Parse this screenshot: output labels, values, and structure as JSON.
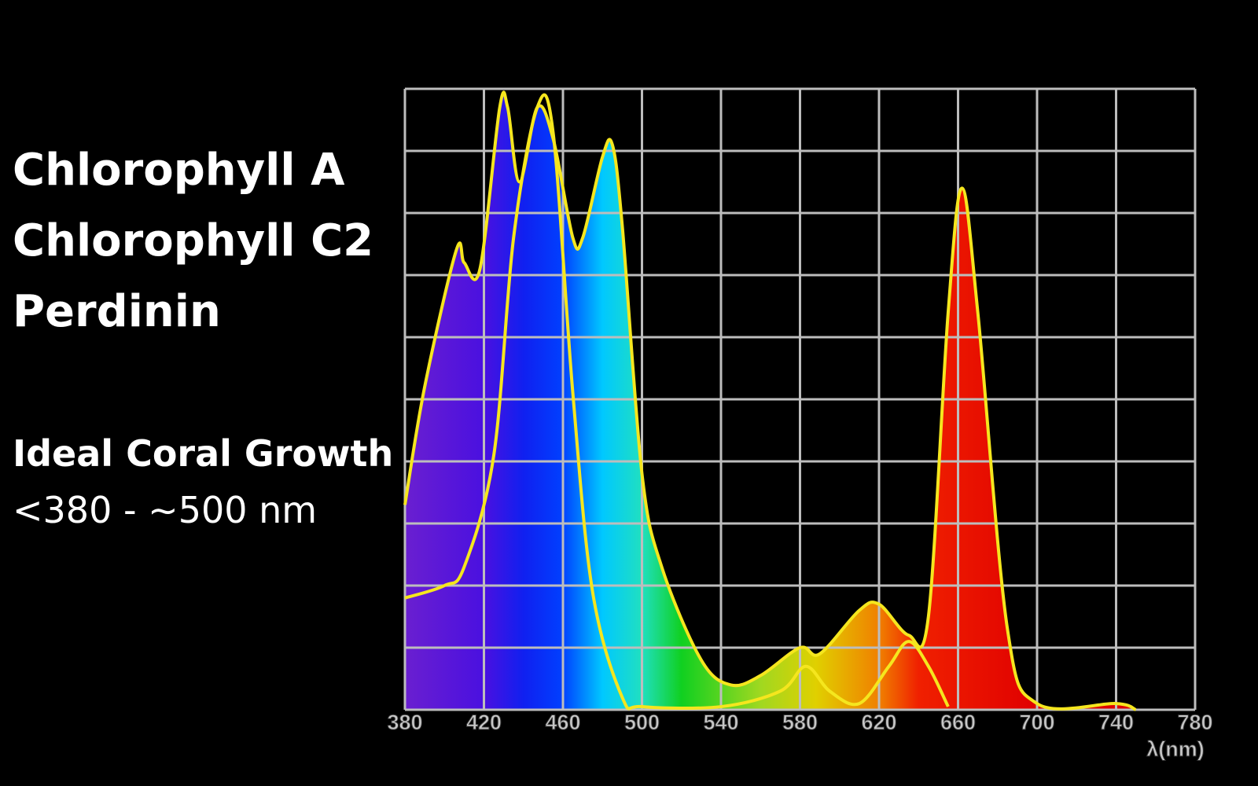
{
  "pigments": [
    "Chlorophyll A",
    "Chlorophyll C2",
    "Perdinin"
  ],
  "note": {
    "title": "Ideal Coral Growth",
    "text": "<380 - ~500 nm"
  },
  "chart_data": {
    "type": "line",
    "xlabel": "λ(nm)",
    "xlim": [
      380,
      780
    ],
    "xticks": [
      380,
      420,
      460,
      500,
      540,
      580,
      620,
      660,
      700,
      740,
      780
    ],
    "ylim": [
      0,
      10
    ],
    "yticks": [
      0,
      1,
      2,
      3,
      4,
      5,
      6,
      7,
      8,
      9,
      10
    ],
    "show_ytick_labels": false,
    "grid": true,
    "series": [
      {
        "color": "#f5e61e",
        "fill": true,
        "x": [
          380,
          390,
          406,
          410,
          418,
          428,
          432,
          438,
          447,
          455,
          465,
          470,
          480,
          485,
          490,
          500,
          510,
          530,
          545,
          560,
          580,
          590,
          610,
          620,
          635,
          645,
          655,
          662,
          670,
          685,
          700,
          740,
          750
        ],
        "values": [
          3.3,
          5.2,
          7.4,
          7.2,
          7.1,
          9.7,
          9.7,
          8.5,
          9.7,
          9.2,
          7.6,
          7.6,
          8.9,
          9.1,
          7.8,
          3.8,
          2.3,
          0.8,
          0.4,
          0.55,
          1.0,
          0.9,
          1.6,
          1.7,
          1.2,
          1.5,
          6.4,
          8.4,
          6.4,
          1.3,
          0.1,
          0.1,
          0
        ]
      },
      {
        "color": "#f5e61e",
        "fill": false,
        "x": [
          380,
          400,
          410,
          425,
          435,
          447,
          455,
          465,
          475,
          490,
          500,
          540,
          570,
          583,
          595,
          610,
          625,
          635,
          645,
          655
        ],
        "values": [
          1.8,
          2.0,
          2.3,
          4.1,
          7.6,
          9.7,
          9.3,
          5.1,
          1.9,
          0.2,
          0.05,
          0.05,
          0.3,
          0.7,
          0.3,
          0.1,
          0.7,
          1.1,
          0.7,
          0.05
        ]
      }
    ]
  }
}
